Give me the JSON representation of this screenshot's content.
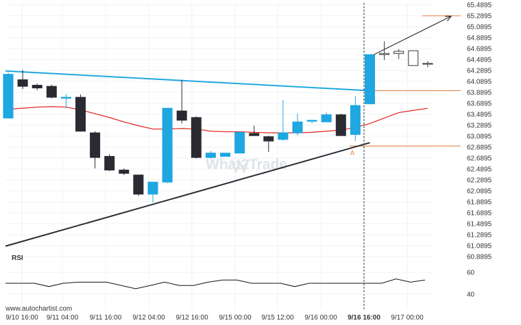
{
  "colors": {
    "bull": "#1ea7e1",
    "bear": "#2a2a33",
    "ma": "#e0201b",
    "resistance": "#1ea7e1",
    "support": "#2a2a33",
    "level": "#e07a3a",
    "arrow": "#333333",
    "grid": "#eef0f3",
    "rsi": "#111111"
  },
  "chart_data": {
    "type": "candlestick",
    "y_ticks": [
      "65.4895",
      "65.2895",
      "65.0895",
      "64.8895",
      "64.6895",
      "64.4895",
      "64.2895",
      "64.0895",
      "63.8895",
      "63.6895",
      "63.4895",
      "63.2895",
      "63.0895",
      "62.8895",
      "62.6895",
      "62.4895",
      "62.2895",
      "62.0895",
      "61.8895",
      "61.6895",
      "61.4895",
      "61.2895",
      "61.0895",
      "60.8895"
    ],
    "x_ticks": [
      "9/10 16:00",
      "9/11 04:00",
      "9/11 16:00",
      "9/12 04:00",
      "9/12 16:00",
      "9/15 00:00",
      "9/15 12:00",
      "9/16 00:00",
      "9/16 16:00",
      "9/17 00:00"
    ],
    "x_ticks_bold": [
      "9/16 16:00"
    ],
    "ylim": [
      60.8,
      65.55
    ],
    "candles": [
      {
        "o": 63.42,
        "h": 64.25,
        "l": 63.42,
        "c": 64.22
      },
      {
        "o": 64.12,
        "h": 64.3,
        "l": 63.95,
        "c": 64.0
      },
      {
        "o": 64.02,
        "h": 64.05,
        "l": 63.93,
        "c": 63.97
      },
      {
        "o": 64.0,
        "h": 64.03,
        "l": 63.78,
        "c": 63.8
      },
      {
        "o": 63.8,
        "h": 63.86,
        "l": 63.6,
        "c": 63.8
      },
      {
        "o": 63.8,
        "h": 63.85,
        "l": 63.18,
        "c": 63.18
      },
      {
        "o": 63.15,
        "h": 63.18,
        "l": 62.5,
        "c": 62.7
      },
      {
        "o": 62.72,
        "h": 62.76,
        "l": 62.45,
        "c": 62.47
      },
      {
        "o": 62.47,
        "h": 62.5,
        "l": 62.38,
        "c": 62.41
      },
      {
        "o": 62.38,
        "h": 62.38,
        "l": 62.0,
        "c": 62.03
      },
      {
        "o": 62.03,
        "h": 62.25,
        "l": 61.88,
        "c": 62.25
      },
      {
        "o": 62.25,
        "h": 63.6,
        "l": 62.23,
        "c": 63.6
      },
      {
        "o": 63.55,
        "h": 64.12,
        "l": 63.32,
        "c": 63.38
      },
      {
        "o": 63.43,
        "h": 63.45,
        "l": 62.68,
        "c": 62.7
      },
      {
        "o": 62.7,
        "h": 62.82,
        "l": 62.68,
        "c": 62.78
      },
      {
        "o": 62.72,
        "h": 62.78,
        "l": 62.72,
        "c": 62.78
      },
      {
        "o": 62.78,
        "h": 63.18,
        "l": 62.78,
        "c": 63.16
      },
      {
        "o": 63.14,
        "h": 63.28,
        "l": 63.1,
        "c": 63.1
      },
      {
        "o": 63.08,
        "h": 63.1,
        "l": 62.8,
        "c": 63.0
      },
      {
        "o": 63.03,
        "h": 63.75,
        "l": 63.0,
        "c": 63.15
      },
      {
        "o": 63.15,
        "h": 63.5,
        "l": 63.1,
        "c": 63.35
      },
      {
        "o": 63.38,
        "h": 63.38,
        "l": 63.32,
        "c": 63.38
      },
      {
        "o": 63.35,
        "h": 63.52,
        "l": 63.35,
        "c": 63.48
      },
      {
        "o": 63.48,
        "h": 63.5,
        "l": 63.1,
        "c": 63.1
      },
      {
        "o": 63.12,
        "h": 63.82,
        "l": 63.0,
        "c": 63.65
      },
      {
        "o": 63.68,
        "h": 64.58,
        "l": 63.68,
        "c": 64.58
      },
      {
        "o": 64.58,
        "h": 64.82,
        "l": 64.48,
        "c": 64.6
      },
      {
        "o": 64.6,
        "h": 64.68,
        "l": 64.5,
        "c": 64.64
      },
      {
        "o": 64.65,
        "h": 64.65,
        "l": 64.38,
        "c": 64.38
      },
      {
        "o": 64.42,
        "h": 64.46,
        "l": 64.35,
        "c": 64.42
      }
    ],
    "moving_average": [
      63.58,
      63.6,
      63.62,
      63.63,
      63.62,
      63.57,
      63.5,
      63.43,
      63.35,
      63.28,
      63.22,
      63.22,
      63.23,
      63.22,
      63.18,
      63.17,
      63.17,
      63.16,
      63.15,
      63.15,
      63.15,
      63.16,
      63.18,
      63.2,
      63.25,
      63.32,
      63.42,
      63.52,
      63.56,
      63.6
    ],
    "resistance_line": {
      "from": {
        "candle": 0,
        "y": 64.28
      },
      "to": {
        "candle": 25,
        "y": 63.92
      }
    },
    "support_line": {
      "from": {
        "candle": 0,
        "y": 61.08
      },
      "to": {
        "candle": 25,
        "y": 62.97
      }
    },
    "breakout_levels": [
      63.92,
      62.91,
      65.29
    ],
    "forecast_arrow": {
      "from": {
        "candle": 25,
        "y": 64.58
      },
      "to": {
        "candle": 31,
        "y": 65.28
      }
    },
    "pattern_marker": "A",
    "rsi": {
      "label": "RSI",
      "ticks": [
        "60",
        "40"
      ],
      "ylim": [
        30,
        70
      ],
      "values": [
        50,
        50,
        50,
        47,
        50,
        51,
        51,
        51,
        48,
        45,
        48,
        51,
        48,
        48,
        51,
        53,
        53,
        50,
        50,
        50,
        47,
        50,
        50,
        50,
        50,
        50,
        50,
        54,
        51,
        53
      ]
    }
  },
  "footer": {
    "source": "www.autochartist.com"
  },
  "watermark": "What2Trade"
}
